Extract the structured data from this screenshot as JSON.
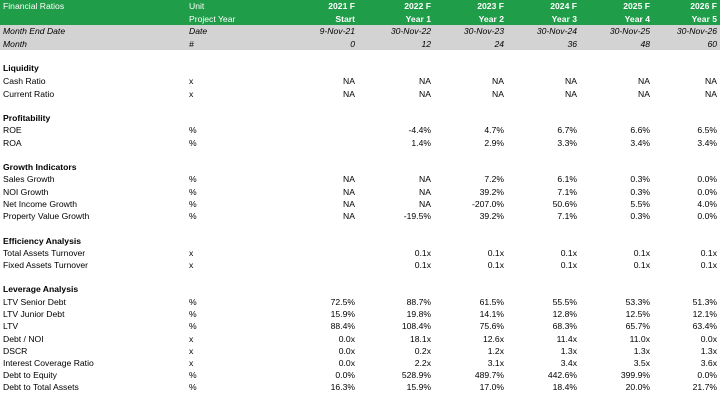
{
  "header": {
    "row1": {
      "label": "Financial Ratios",
      "unit": "Unit",
      "years": [
        "2021 F",
        "2022 F",
        "2023 F",
        "2024 F",
        "2025 F",
        "2026 F"
      ]
    },
    "row2": {
      "unit": "Project Year",
      "years": [
        "Start",
        "Year 1",
        "Year 2",
        "Year 3",
        "Year 4",
        "Year 5"
      ]
    }
  },
  "band": {
    "row1": {
      "label": "Month End Date",
      "unit": "Date",
      "values": [
        "9-Nov-21",
        "30-Nov-22",
        "30-Nov-23",
        "30-Nov-24",
        "30-Nov-25",
        "30-Nov-26"
      ]
    },
    "row2": {
      "label": "Month",
      "unit": "#",
      "values": [
        "0",
        "12",
        "24",
        "36",
        "48",
        "60"
      ]
    }
  },
  "rows": [
    {
      "type": "section",
      "label": "Liquidity"
    },
    {
      "label": "Cash Ratio",
      "unit": "x",
      "values": [
        "NA",
        "NA",
        "NA",
        "NA",
        "NA",
        "NA"
      ]
    },
    {
      "label": "Current Ratio",
      "unit": "x",
      "values": [
        "NA",
        "NA",
        "NA",
        "NA",
        "NA",
        "NA"
      ]
    },
    {
      "type": "section",
      "label": "Profitability"
    },
    {
      "label": "ROE",
      "unit": "%",
      "values": [
        "",
        "-4.4%",
        "4.7%",
        "6.7%",
        "6.6%",
        "6.5%"
      ]
    },
    {
      "label": "ROA",
      "unit": "%",
      "values": [
        "",
        "1.4%",
        "2.9%",
        "3.3%",
        "3.4%",
        "3.4%"
      ]
    },
    {
      "type": "section",
      "label": "Growth Indicators"
    },
    {
      "label": "Sales Growth",
      "unit": "%",
      "values": [
        "NA",
        "NA",
        "7.2%",
        "6.1%",
        "0.3%",
        "0.0%"
      ]
    },
    {
      "label": "NOI Growth",
      "unit": "%",
      "values": [
        "NA",
        "NA",
        "39.2%",
        "7.1%",
        "0.3%",
        "0.0%"
      ]
    },
    {
      "label": "Net Income Growth",
      "unit": "%",
      "values": [
        "NA",
        "NA",
        "-207.0%",
        "50.6%",
        "5.5%",
        "4.0%"
      ]
    },
    {
      "label": "Property Value Growth",
      "unit": "%",
      "values": [
        "NA",
        "-19.5%",
        "39.2%",
        "7.1%",
        "0.3%",
        "0.0%"
      ]
    },
    {
      "type": "section",
      "label": "Efficiency Analysis"
    },
    {
      "label": "Total Assets Turnover",
      "unit": "x",
      "values": [
        "",
        "0.1x",
        "0.1x",
        "0.1x",
        "0.1x",
        "0.1x"
      ]
    },
    {
      "label": "Fixed Assets Turnover",
      "unit": "x",
      "values": [
        "",
        "0.1x",
        "0.1x",
        "0.1x",
        "0.1x",
        "0.1x"
      ]
    },
    {
      "type": "section",
      "label": "Leverage Analysis"
    },
    {
      "label": "LTV Senior Debt",
      "unit": "%",
      "values": [
        "72.5%",
        "88.7%",
        "61.5%",
        "55.5%",
        "53.3%",
        "51.3%"
      ]
    },
    {
      "label": "LTV Junior Debt",
      "unit": "%",
      "values": [
        "15.9%",
        "19.8%",
        "14.1%",
        "12.8%",
        "12.5%",
        "12.1%"
      ]
    },
    {
      "label": "LTV",
      "unit": "%",
      "values": [
        "88.4%",
        "108.4%",
        "75.6%",
        "68.3%",
        "65.7%",
        "63.4%"
      ]
    },
    {
      "label": "Debt / NOI",
      "unit": "x",
      "values": [
        "0.0x",
        "18.1x",
        "12.6x",
        "11.4x",
        "11.0x",
        "0.0x"
      ]
    },
    {
      "label": "DSCR",
      "unit": "x",
      "values": [
        "0.0x",
        "0.2x",
        "1.2x",
        "1.3x",
        "1.3x",
        "1.3x"
      ]
    },
    {
      "label": "Interest Coverage Ratio",
      "unit": "x",
      "values": [
        "0.0x",
        "2.2x",
        "3.1x",
        "3.4x",
        "3.5x",
        "3.6x"
      ]
    },
    {
      "label": "Debt to Equity",
      "unit": "%",
      "values": [
        "0.0%",
        "528.9%",
        "489.7%",
        "442.6%",
        "399.9%",
        "0.0%"
      ]
    },
    {
      "label": "Debt to Total Assets",
      "unit": "%",
      "values": [
        "16.3%",
        "15.9%",
        "17.0%",
        "18.4%",
        "20.0%",
        "21.7%"
      ]
    }
  ]
}
